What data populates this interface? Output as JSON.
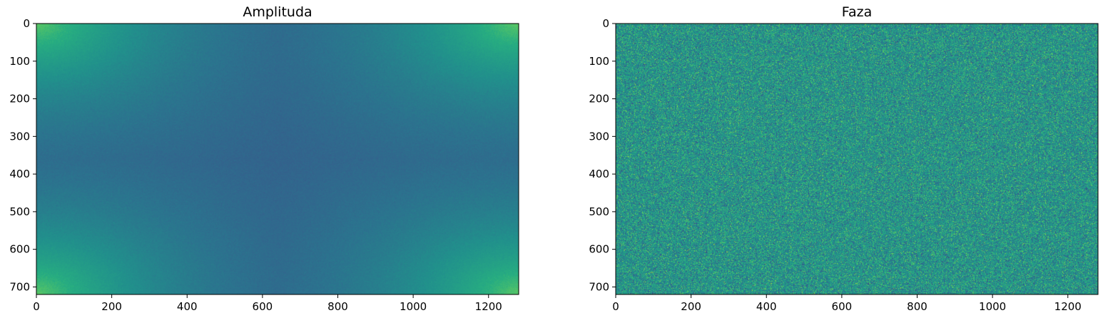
{
  "chart_data": [
    {
      "type": "heatmap",
      "title": "Amplituda",
      "colormap": "viridis",
      "pattern": "smooth",
      "xlim": [
        0,
        1280
      ],
      "ylim": [
        720,
        0
      ],
      "xticks": [
        0,
        200,
        400,
        600,
        800,
        1000,
        1200
      ],
      "yticks": [
        0,
        100,
        200,
        300,
        400,
        500,
        600,
        700
      ],
      "xlabel": "",
      "ylabel": ""
    },
    {
      "type": "heatmap",
      "title": "Faza",
      "colormap": "viridis",
      "pattern": "noise",
      "xlim": [
        0,
        1280
      ],
      "ylim": [
        720,
        0
      ],
      "xticks": [
        0,
        200,
        400,
        600,
        800,
        1000,
        1200
      ],
      "yticks": [
        0,
        100,
        200,
        300,
        400,
        500,
        600,
        700
      ],
      "xlabel": "",
      "ylabel": ""
    }
  ]
}
